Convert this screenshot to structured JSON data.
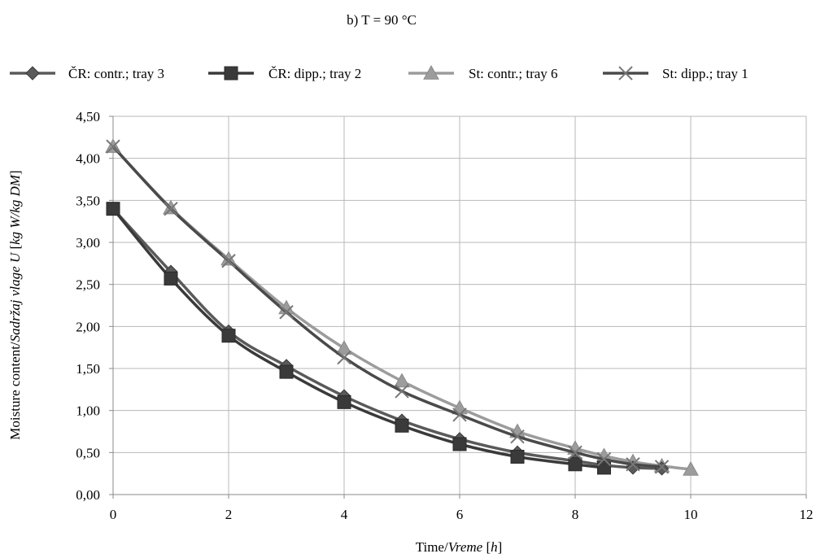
{
  "chart_data": {
    "type": "line",
    "title": "b) T = 90 °C",
    "xlabel_parts": [
      "Time/",
      "Vreme",
      " [",
      "h",
      "]"
    ],
    "ylabel_parts": [
      "Moisture content/",
      "Sadržaj vlage U",
      " [",
      "kg W/kg DM",
      "]"
    ],
    "xlim": [
      0,
      12
    ],
    "ylim": [
      0,
      4.5
    ],
    "x_ticks": [
      "0",
      "2",
      "4",
      "6",
      "8",
      "10",
      "12"
    ],
    "y_ticks": [
      "0,00",
      "0,50",
      "1,00",
      "1,50",
      "2,00",
      "2,50",
      "3,00",
      "3,50",
      "4,00",
      "4,50"
    ],
    "grid": "vertical and horizontal",
    "legend_position": "top",
    "series": [
      {
        "name": "ČR: contr.; tray 3",
        "marker": "diamond",
        "color": "#5a5a5a",
        "x": [
          0,
          1,
          2,
          3,
          4,
          5,
          6,
          7,
          8,
          8.5,
          9,
          9.5
        ],
        "y": [
          3.4,
          2.65,
          1.94,
          1.53,
          1.17,
          0.88,
          0.66,
          0.5,
          0.4,
          0.35,
          0.32,
          0.31
        ]
      },
      {
        "name": "ČR: dipp.; tray 2",
        "marker": "square",
        "color": "#3a3a3a",
        "x": [
          0,
          1,
          2,
          3,
          4,
          5,
          6,
          7,
          8,
          8.5
        ],
        "y": [
          3.4,
          2.57,
          1.89,
          1.46,
          1.1,
          0.82,
          0.6,
          0.45,
          0.36,
          0.32
        ]
      },
      {
        "name": "St: contr.; tray 6",
        "marker": "triangle",
        "color": "#9c9c9c",
        "x": [
          0,
          1,
          2,
          3,
          4,
          5,
          6,
          7,
          8,
          8.5,
          9,
          9.5,
          10
        ],
        "y": [
          4.14,
          3.41,
          2.8,
          2.22,
          1.74,
          1.35,
          1.03,
          0.75,
          0.55,
          0.46,
          0.39,
          0.34,
          0.3
        ]
      },
      {
        "name": "St: dipp.; tray 1",
        "marker": "x",
        "color": "#4a4a4a",
        "x": [
          0,
          1,
          2,
          3,
          4,
          5,
          6,
          7,
          8,
          8.5,
          9,
          9.5
        ],
        "y": [
          4.14,
          3.4,
          2.78,
          2.17,
          1.63,
          1.23,
          0.95,
          0.69,
          0.5,
          0.42,
          0.36,
          0.33
        ]
      }
    ]
  }
}
